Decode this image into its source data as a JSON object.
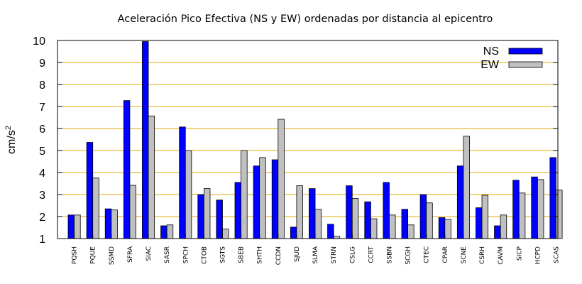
{
  "chart_data": {
    "type": "bar",
    "title": "Aceleración Pico Efectiva (NS y EW) ordenadas por distancia al epicentro",
    "xlabel": "",
    "ylabel": "cm/s",
    "ylabel_sup": "2",
    "ylim": [
      1,
      10
    ],
    "yticks": [
      "1",
      "2",
      "3",
      "4",
      "5",
      "6",
      "7",
      "8",
      "9",
      "10"
    ],
    "grid": true,
    "legend_position": "top-right",
    "colors": {
      "NS": "#0000ff",
      "EW": "#c0c0c0",
      "grid": "#e0a800",
      "frame": "#000000"
    },
    "categories": [
      "PQSH",
      "PQUE",
      "SSMD",
      "SFRA",
      "SIAC",
      "SASR",
      "SPCH",
      "CTOB",
      "SGTS",
      "SBEB",
      "SHTH",
      "CCDN",
      "SJUD",
      "SLMA",
      "STRN",
      "CSLG",
      "CCRT",
      "SSBN",
      "SCGH",
      "CTEC",
      "CPAR",
      "SCNE",
      "CSRH",
      "CAVM",
      "SICP",
      "HCPD",
      "SCAS"
    ],
    "series": [
      {
        "name": "NS",
        "values": [
          2.07,
          5.37,
          2.35,
          7.27,
          9.95,
          1.58,
          6.07,
          3.0,
          2.75,
          3.55,
          4.3,
          4.58,
          1.52,
          3.27,
          1.65,
          3.4,
          2.67,
          3.55,
          2.33,
          3.0,
          1.95,
          4.3,
          2.4,
          1.58,
          3.65,
          3.8,
          4.68
        ]
      },
      {
        "name": "EW",
        "values": [
          2.07,
          3.75,
          2.3,
          3.42,
          6.57,
          1.62,
          5.0,
          3.27,
          1.43,
          5.0,
          4.68,
          6.42,
          3.4,
          2.33,
          1.1,
          2.82,
          1.9,
          2.07,
          1.62,
          2.62,
          1.87,
          5.65,
          2.97,
          2.07,
          3.07,
          3.68,
          3.2
        ]
      }
    ]
  }
}
